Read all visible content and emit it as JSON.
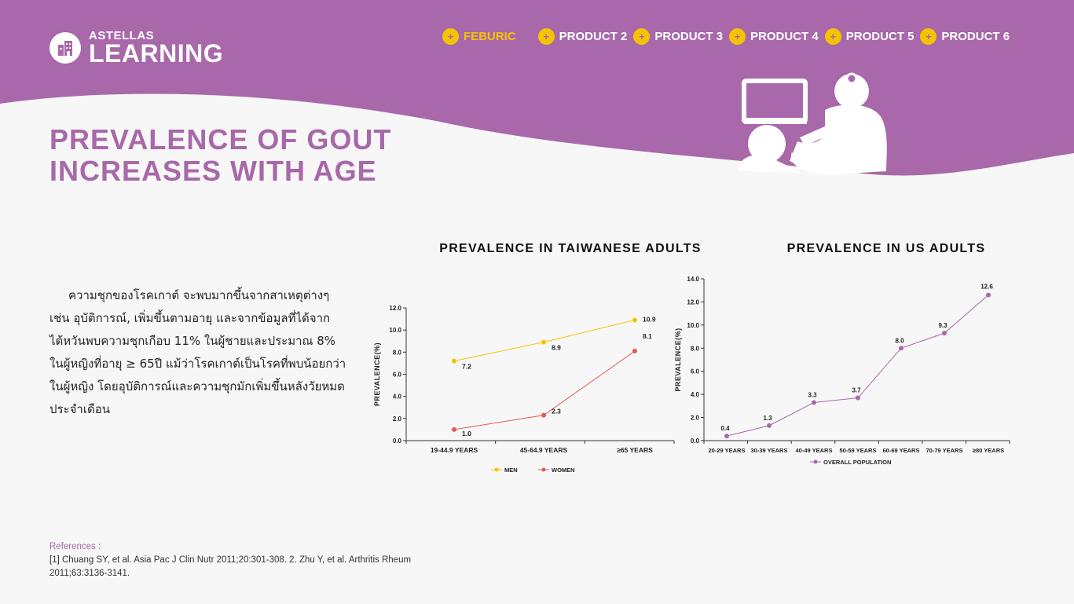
{
  "colors": {
    "brand": "#a868aa",
    "accent": "#f5c400",
    "men_line": "#f5c400",
    "women_line": "#e05a4f",
    "us_line": "#a868aa"
  },
  "logo": {
    "line1": "ASTELLAS",
    "line2": "LEARNING",
    "icon": "building-icon"
  },
  "nav": {
    "items": [
      {
        "label": "FEBURIC",
        "active": true
      },
      {
        "label": "PRODUCT 2",
        "active": false
      },
      {
        "label": "PRODUCT 3",
        "active": false
      },
      {
        "label": "PRODUCT 4",
        "active": false
      },
      {
        "label": "PRODUCT 5",
        "active": false
      },
      {
        "label": "PRODUCT 6",
        "active": false
      }
    ]
  },
  "page": {
    "title_line1": "PREVALENCE OF GOUT",
    "title_line2": "INCREASES WITH AGE",
    "body": "ความชุกของโรคเกาต์ จะพบมากขึ้นจากสาเหตุต่างๆ เช่น อุบัติการณ์, เพิ่มขึ้นตามอายุ และจากข้อมูลที่ได้จากไต้หวันพบความชุกเกือบ 11% ในผู้ชายและประมาณ 8% ในผู้หญิงที่อายุ ≥ 65ปี แม้ว่าโรคเกาต์เป็นโรคที่พบน้อยกว่าในผู้หญิง โดยอุบัติการณ์และความชุกมักเพิ่มขึ้นหลังวัยหมดประจำเดือน"
  },
  "references": {
    "heading": "References :",
    "text": "[1] Chuang SY, et al. Asia Pac J Clin Nutr 2011;20:301-308. 2. Zhu Y, et al. Arthritis Rheum 2011;63:3136-3141."
  },
  "chart_data": [
    {
      "type": "line",
      "title": "PREVALENCE IN TAIWANESE ADULTS",
      "ylabel": "PREVALENCE(%)",
      "xlabel": "",
      "ylim": [
        0,
        12
      ],
      "yticks": [
        "0.0",
        "2.0",
        "4.0",
        "6.0",
        "8.0",
        "10.0",
        "12.0"
      ],
      "categories": [
        "19-44.9 YEARS",
        "45-64.9 YEARS",
        "≥65 YEARS"
      ],
      "series": [
        {
          "name": "MEN",
          "values": [
            7.2,
            8.9,
            10.9
          ],
          "labels": [
            "7.2",
            "8.9",
            "10.9"
          ]
        },
        {
          "name": "WOMEN",
          "values": [
            1.0,
            2.3,
            8.1
          ],
          "labels": [
            "1.0",
            "2.3",
            "8.1"
          ]
        }
      ],
      "legend": "bottom",
      "grid": false
    },
    {
      "type": "line",
      "title": "PREVALENCE IN US ADULTS",
      "ylabel": "PREVALENCE(%)",
      "xlabel": "",
      "ylim": [
        0,
        14
      ],
      "yticks": [
        "0.0",
        "2.0",
        "4.0",
        "6.0",
        "8.0",
        "10.0",
        "12.0",
        "14.0"
      ],
      "categories": [
        "20-29 YEARS",
        "30-39 YEARS",
        "40-49 YEARS",
        "50-59 YEARS",
        "60-69 YEARS",
        "70-79 YEARS",
        "≥80 YEARS"
      ],
      "series": [
        {
          "name": "OVERALL POPULATION",
          "values": [
            0.4,
            1.3,
            3.3,
            3.7,
            8.0,
            9.3,
            12.6
          ],
          "labels": [
            "0.4",
            "1.3",
            "3.3",
            "3.7",
            "8.0",
            "9.3",
            "12.6"
          ]
        }
      ],
      "legend": "bottom",
      "grid": false
    }
  ]
}
